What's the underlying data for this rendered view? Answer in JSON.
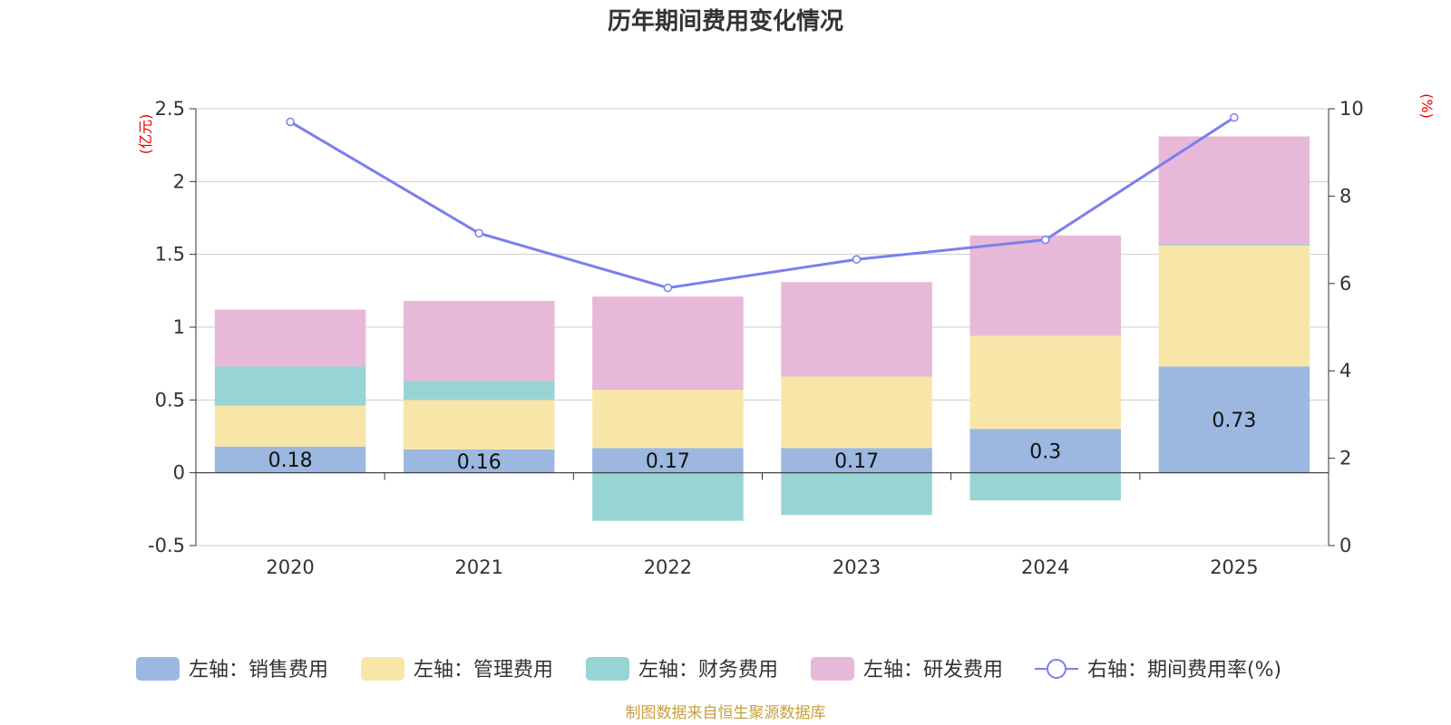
{
  "chart_data": {
    "type": "bar",
    "stacked": true,
    "title": "历年期间费用变化情况",
    "categories": [
      "2020",
      "2021",
      "2022",
      "2023",
      "2024",
      "2025"
    ],
    "left_axis": {
      "unit": "(亿元)",
      "ylim": [
        -0.5,
        2.5
      ],
      "ticks": [
        "-0.5",
        "0",
        "0.5",
        "1",
        "1.5",
        "2",
        "2.5"
      ],
      "tick_values": [
        -0.5,
        0,
        0.5,
        1,
        1.5,
        2,
        2.5
      ]
    },
    "right_axis": {
      "unit": "(%)",
      "ylim": [
        0,
        10
      ],
      "ticks": [
        "0",
        "2",
        "4",
        "6",
        "8",
        "10"
      ],
      "tick_values": [
        0,
        2,
        4,
        6,
        8,
        10
      ]
    },
    "series": [
      {
        "name": "左轴：销售费用",
        "axis": "left",
        "color": "#9cb7e0",
        "values": [
          0.18,
          0.16,
          0.17,
          0.17,
          0.3,
          0.73
        ],
        "labels": [
          "0.18",
          "0.16",
          "0.17",
          "0.17",
          "0.3",
          "0.73"
        ]
      },
      {
        "name": "左轴：管理费用",
        "axis": "left",
        "color": "#f8e6a8",
        "values": [
          0.28,
          0.34,
          0.4,
          0.49,
          0.64,
          0.83
        ]
      },
      {
        "name": "左轴：财务费用",
        "axis": "left",
        "color": "#98d4d4",
        "values": [
          0.27,
          0.13,
          -0.33,
          -0.29,
          -0.19,
          0.01
        ]
      },
      {
        "name": "左轴：研发费用",
        "axis": "left",
        "color": "#e8b8d8",
        "values": [
          0.39,
          0.55,
          0.64,
          0.65,
          0.69,
          0.74
        ]
      },
      {
        "name": "右轴：期间费用率(%)",
        "axis": "right",
        "type": "line",
        "color": "#7b7fee",
        "values": [
          9.7,
          7.15,
          5.9,
          6.55,
          7.0,
          9.8
        ]
      }
    ],
    "source": "制图数据来自恒生聚源数据库"
  }
}
